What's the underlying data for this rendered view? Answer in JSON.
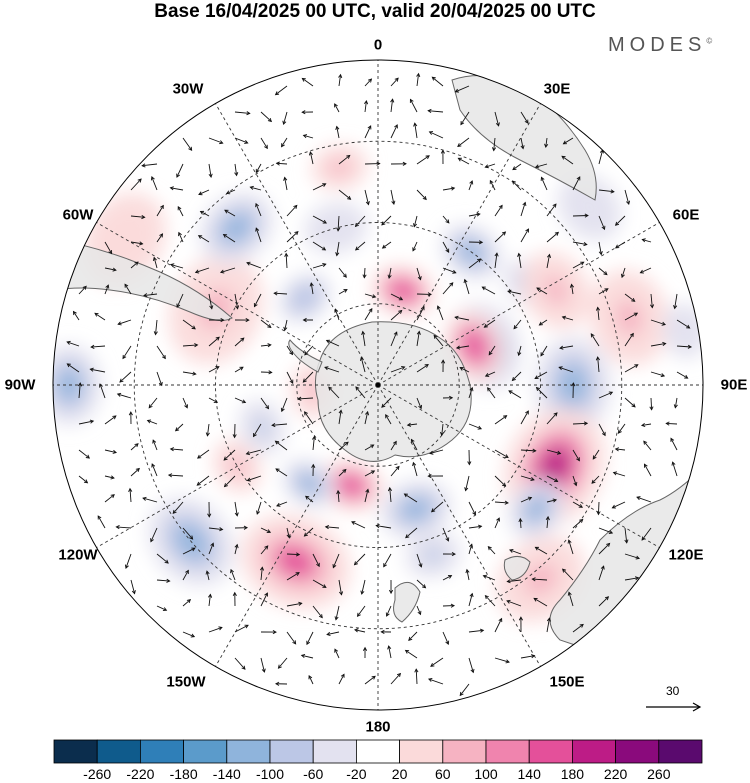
{
  "title": "Base 16/04/2025 00 UTC, valid 20/04/2025 00 UTC",
  "brand": "MODES",
  "brand_mark": "©",
  "longitude_labels": [
    "0",
    "30E",
    "60E",
    "90E",
    "120E",
    "150E",
    "180",
    "150W",
    "120W",
    "90W",
    "60W",
    "30W"
  ],
  "vector_scale": {
    "label": "30"
  },
  "colorbar": {
    "labels": [
      "-260",
      "-220",
      "-180",
      "-140",
      "-100",
      "-60",
      "-20",
      "20",
      "60",
      "100",
      "140",
      "180",
      "220",
      "260"
    ],
    "colors": [
      "#0b2d4d",
      "#0f5b8c",
      "#2f7fb8",
      "#5b9bcb",
      "#8fb4dc",
      "#bcc7e6",
      "#e3e2f0",
      "#ffffff",
      "#fbdada",
      "#f6b3c2",
      "#f084ae",
      "#e4509a",
      "#bd1c86",
      "#8a0a7c",
      "#5a0a6e"
    ]
  },
  "map": {
    "projection": "south-polar-stereographic",
    "colors": {
      "land": "#e6e6e6",
      "coast": "#666666",
      "grid": "#333333",
      "vector": "#111111"
    },
    "anomalies": [
      {
        "lon": 35,
        "r": 0.5,
        "value": -110,
        "size": 0.08
      },
      {
        "lon": 55,
        "r": 0.55,
        "value": -80,
        "size": 0.06
      },
      {
        "lon": 70,
        "r": 0.35,
        "value": -150,
        "size": 0.11
      },
      {
        "lon": 50,
        "r": 0.85,
        "value": -40,
        "size": 0.09
      },
      {
        "lon": 68,
        "r": 0.32,
        "value": 170,
        "size": 0.09
      },
      {
        "lon": 90,
        "r": 0.6,
        "value": -140,
        "size": 0.12
      },
      {
        "lon": 75,
        "r": 0.8,
        "value": 60,
        "size": 0.12
      },
      {
        "lon": 62,
        "r": 0.62,
        "value": 60,
        "size": 0.1
      },
      {
        "lon": 115,
        "r": 0.6,
        "value": 180,
        "size": 0.15
      },
      {
        "lon": 128,
        "r": 0.62,
        "value": -130,
        "size": 0.08
      },
      {
        "lon": 140,
        "r": 0.78,
        "value": 60,
        "size": 0.12
      },
      {
        "lon": 163,
        "r": 0.4,
        "value": -140,
        "size": 0.09
      },
      {
        "lon": 162,
        "r": 0.55,
        "value": -80,
        "size": 0.07
      },
      {
        "lon": 195,
        "r": 0.32,
        "value": 170,
        "size": 0.08
      },
      {
        "lon": 205,
        "r": 0.6,
        "value": 140,
        "size": 0.14
      },
      {
        "lon": 215,
        "r": 0.37,
        "value": -110,
        "size": 0.07
      },
      {
        "lon": 230,
        "r": 0.75,
        "value": -120,
        "size": 0.12
      },
      {
        "lon": 240,
        "r": 0.5,
        "value": 60,
        "size": 0.07
      },
      {
        "lon": 250,
        "r": 0.38,
        "value": -80,
        "size": 0.07
      },
      {
        "lon": 265,
        "r": 0.2,
        "value": 60,
        "size": 0.07
      },
      {
        "lon": 270,
        "r": 0.95,
        "value": -120,
        "size": 0.1
      },
      {
        "lon": 295,
        "r": 0.55,
        "value": 70,
        "size": 0.14
      },
      {
        "lon": 300,
        "r": 0.9,
        "value": 50,
        "size": 0.12
      },
      {
        "lon": 318,
        "r": 0.65,
        "value": -130,
        "size": 0.1
      },
      {
        "lon": 320,
        "r": 0.35,
        "value": -100,
        "size": 0.07
      },
      {
        "lon": 350,
        "r": 0.68,
        "value": 70,
        "size": 0.07
      },
      {
        "lon": 15,
        "r": 0.3,
        "value": 150,
        "size": 0.08
      },
      {
        "lon": 345,
        "r": 0.5,
        "value": -40,
        "size": 0.08
      },
      {
        "lon": 80,
        "r": 0.96,
        "value": -30,
        "size": 0.07
      }
    ]
  }
}
